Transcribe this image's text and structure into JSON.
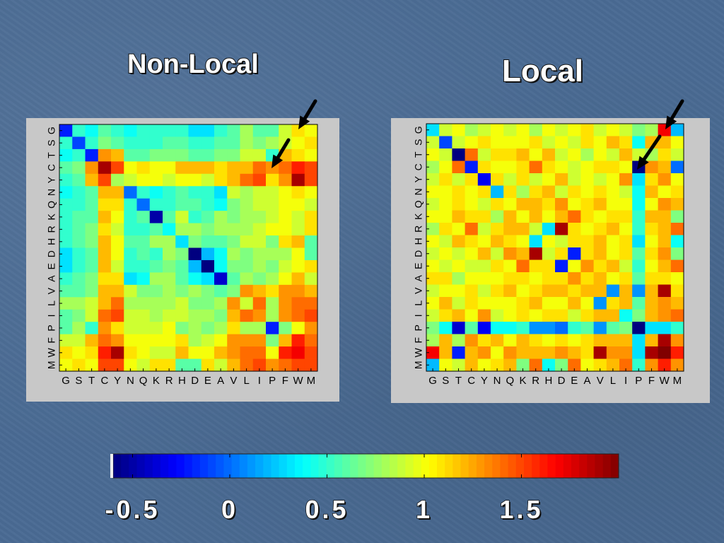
{
  "chart_data": [
    {
      "type": "heatmap",
      "title": "Non-Local",
      "x_labels": [
        "G",
        "S",
        "T",
        "C",
        "Y",
        "N",
        "Q",
        "K",
        "R",
        "H",
        "D",
        "E",
        "A",
        "V",
        "L",
        "I",
        "P",
        "F",
        "W",
        "M"
      ],
      "y_labels": [
        "G",
        "S",
        "T",
        "C",
        "Y",
        "N",
        "Q",
        "K",
        "R",
        "H",
        "D",
        "E",
        "A",
        "V",
        "L",
        "I",
        "P",
        "F",
        "W",
        "M"
      ],
      "values": [
        [
          -0.2,
          0.5,
          0.4,
          0.6,
          0.5,
          0.4,
          0.5,
          0.5,
          0.5,
          0.5,
          0.3,
          0.3,
          0.5,
          0.6,
          0.8,
          0.6,
          0.6,
          0.9,
          1.1,
          1.0
        ],
        [
          0.5,
          -0.1,
          0.5,
          0.7,
          0.6,
          0.5,
          0.5,
          0.5,
          0.6,
          0.6,
          0.5,
          0.5,
          0.6,
          0.6,
          0.8,
          0.7,
          0.8,
          0.9,
          1.0,
          1.1
        ],
        [
          0.4,
          0.5,
          -0.2,
          1.3,
          1.2,
          0.6,
          0.6,
          0.7,
          0.7,
          0.7,
          0.6,
          0.6,
          0.7,
          0.7,
          0.9,
          0.9,
          0.5,
          1.2,
          1.1,
          1.0
        ],
        [
          0.6,
          0.7,
          1.3,
          1.9,
          1.5,
          1.0,
          1.1,
          1.0,
          1.0,
          1.2,
          1.2,
          1.2,
          1.1,
          1.2,
          1.2,
          1.4,
          1.3,
          1.4,
          1.6,
          1.5
        ],
        [
          0.5,
          0.6,
          1.2,
          1.5,
          0.8,
          0.9,
          1.0,
          1.0,
          0.9,
          1.0,
          1.0,
          0.9,
          1.1,
          1.2,
          1.4,
          1.5,
          1.1,
          1.3,
          1.9,
          1.5
        ],
        [
          0.4,
          0.5,
          0.6,
          1.2,
          1.2,
          0.0,
          0.5,
          0.4,
          0.5,
          0.6,
          0.5,
          0.5,
          0.3,
          0.9,
          0.8,
          0.9,
          0.9,
          1.0,
          1.1,
          1.0
        ],
        [
          0.5,
          0.5,
          0.6,
          1.1,
          1.1,
          0.5,
          0.0,
          0.5,
          0.5,
          0.6,
          0.6,
          0.5,
          0.4,
          0.7,
          0.8,
          0.9,
          0.9,
          1.0,
          1.0,
          0.9
        ],
        [
          0.5,
          0.6,
          0.6,
          1.2,
          1.0,
          0.5,
          0.6,
          -0.5,
          0.6,
          0.9,
          0.5,
          0.6,
          0.8,
          0.7,
          0.8,
          0.8,
          0.9,
          1.0,
          0.9,
          1.1
        ],
        [
          0.5,
          0.6,
          0.7,
          1.1,
          0.9,
          0.5,
          0.5,
          0.6,
          0.4,
          0.8,
          0.8,
          0.7,
          0.8,
          0.8,
          0.8,
          0.9,
          1.0,
          1.0,
          0.9,
          1.1
        ],
        [
          0.5,
          0.6,
          0.7,
          1.2,
          1.0,
          0.6,
          0.6,
          0.8,
          0.8,
          0.3,
          0.7,
          0.6,
          0.6,
          0.7,
          0.9,
          0.9,
          0.7,
          1.1,
          1.2,
          0.6
        ],
        [
          0.3,
          0.5,
          0.6,
          1.2,
          1.0,
          0.5,
          0.6,
          0.5,
          0.8,
          0.7,
          -0.6,
          0.2,
          0.4,
          0.8,
          0.7,
          0.8,
          0.8,
          0.8,
          1.0,
          0.6
        ],
        [
          0.3,
          0.5,
          0.6,
          1.2,
          0.9,
          0.5,
          0.5,
          0.6,
          0.7,
          0.6,
          0.2,
          -0.6,
          0.4,
          0.7,
          0.7,
          0.8,
          0.7,
          0.9,
          1.0,
          1.1
        ],
        [
          0.5,
          0.6,
          0.7,
          1.1,
          1.1,
          0.3,
          0.4,
          0.8,
          0.8,
          0.6,
          0.4,
          0.3,
          -0.4,
          0.6,
          0.8,
          0.7,
          0.8,
          1.0,
          1.2,
          0.9
        ],
        [
          0.6,
          0.6,
          0.7,
          1.2,
          1.2,
          0.9,
          0.7,
          0.7,
          0.8,
          0.7,
          0.8,
          0.7,
          0.6,
          0.7,
          1.3,
          1.2,
          1.1,
          1.3,
          1.3,
          1.2
        ],
        [
          0.8,
          0.8,
          0.9,
          1.2,
          1.4,
          0.8,
          0.8,
          0.8,
          0.8,
          0.9,
          0.7,
          0.7,
          0.8,
          1.3,
          0.9,
          1.4,
          0.8,
          1.3,
          1.4,
          1.4
        ],
        [
          0.6,
          0.7,
          0.9,
          1.4,
          1.5,
          0.9,
          0.9,
          0.8,
          0.9,
          0.9,
          0.8,
          0.8,
          0.7,
          1.2,
          1.4,
          1.3,
          0.8,
          1.3,
          1.4,
          1.5
        ],
        [
          0.6,
          0.8,
          0.5,
          1.3,
          1.1,
          0.9,
          0.9,
          0.9,
          1.0,
          0.7,
          0.8,
          0.7,
          0.8,
          1.1,
          0.8,
          0.8,
          -0.2,
          0.7,
          1.0,
          1.3
        ],
        [
          0.9,
          0.9,
          1.2,
          1.4,
          1.3,
          1.0,
          1.0,
          1.0,
          1.0,
          1.1,
          0.8,
          0.9,
          1.0,
          1.3,
          1.3,
          1.3,
          0.7,
          1.2,
          1.6,
          1.4
        ],
        [
          1.1,
          1.0,
          1.1,
          1.6,
          1.9,
          1.1,
          1.0,
          0.9,
          0.9,
          1.2,
          1.0,
          1.0,
          1.2,
          1.3,
          1.4,
          1.4,
          1.0,
          1.6,
          1.7,
          1.5
        ],
        [
          1.0,
          1.1,
          1.0,
          1.5,
          1.5,
          1.0,
          0.9,
          1.1,
          1.1,
          0.6,
          0.6,
          1.1,
          0.9,
          1.2,
          1.4,
          1.5,
          1.3,
          1.4,
          1.5,
          1.5
        ]
      ]
    },
    {
      "type": "heatmap",
      "title": "Local",
      "x_labels": [
        "G",
        "S",
        "T",
        "C",
        "Y",
        "N",
        "Q",
        "K",
        "R",
        "H",
        "D",
        "E",
        "A",
        "V",
        "L",
        "I",
        "P",
        "F",
        "W",
        "M"
      ],
      "y_labels": [
        "G",
        "S",
        "T",
        "C",
        "Y",
        "N",
        "Q",
        "K",
        "R",
        "H",
        "D",
        "E",
        "A",
        "V",
        "L",
        "I",
        "P",
        "F",
        "W",
        "M"
      ],
      "values": [
        [
          0.3,
          0.9,
          1.0,
          0.8,
          0.9,
          1.0,
          0.9,
          1.0,
          0.8,
          1.0,
          0.9,
          1.0,
          1.1,
          0.9,
          1.0,
          0.9,
          0.7,
          0.8,
          1.7,
          0.2
        ],
        [
          0.9,
          -0.1,
          0.9,
          1.0,
          1.1,
          1.0,
          1.0,
          1.0,
          1.1,
          0.9,
          1.0,
          0.9,
          1.1,
          1.0,
          1.2,
          1.1,
          0.4,
          1.2,
          1.2,
          1.0
        ],
        [
          1.0,
          0.9,
          -0.6,
          1.4,
          0.9,
          1.1,
          1.1,
          1.2,
          1.0,
          1.2,
          0.9,
          1.0,
          0.8,
          1.0,
          0.9,
          1.2,
          0.9,
          0.8,
          1.1,
          0.9
        ],
        [
          0.8,
          1.0,
          1.4,
          -0.2,
          1.1,
          1.0,
          1.0,
          1.1,
          1.4,
          1.1,
          1.0,
          0.9,
          1.0,
          1.1,
          1.1,
          1.0,
          -0.6,
          1.3,
          1.2,
          0.0
        ],
        [
          0.9,
          1.1,
          0.9,
          1.1,
          -0.3,
          1.1,
          0.9,
          1.1,
          0.9,
          1.0,
          1.2,
          0.9,
          1.0,
          0.9,
          1.0,
          1.3,
          0.3,
          1.1,
          1.3,
          1.0
        ],
        [
          1.0,
          1.0,
          1.1,
          1.0,
          1.1,
          0.2,
          1.1,
          0.8,
          1.1,
          1.2,
          0.9,
          1.1,
          1.0,
          1.1,
          1.0,
          0.9,
          0.4,
          1.2,
          1.0,
          1.1
        ],
        [
          0.9,
          1.0,
          1.1,
          1.0,
          0.9,
          1.1,
          1.0,
          1.2,
          1.2,
          1.1,
          1.3,
          1.0,
          1.1,
          1.2,
          1.0,
          1.0,
          0.4,
          1.0,
          1.3,
          1.2
        ],
        [
          1.0,
          1.0,
          1.2,
          1.1,
          1.1,
          0.8,
          1.2,
          1.0,
          1.2,
          1.0,
          1.2,
          1.4,
          1.1,
          1.0,
          1.1,
          1.1,
          0.5,
          1.2,
          1.2,
          0.7
        ],
        [
          0.8,
          1.1,
          1.0,
          1.4,
          0.9,
          1.1,
          1.2,
          1.2,
          0.9,
          0.3,
          1.9,
          1.1,
          1.0,
          1.1,
          1.2,
          1.0,
          0.5,
          1.1,
          1.2,
          1.4
        ],
        [
          1.0,
          0.9,
          1.2,
          1.1,
          1.0,
          1.2,
          1.1,
          1.0,
          0.3,
          1.0,
          0.9,
          1.1,
          1.1,
          1.2,
          1.0,
          1.1,
          0.3,
          1.0,
          1.2,
          0.4
        ],
        [
          0.9,
          1.0,
          0.9,
          1.0,
          1.2,
          0.9,
          1.3,
          1.2,
          1.9,
          0.9,
          1.1,
          -0.2,
          1.1,
          1.2,
          1.0,
          1.1,
          0.6,
          1.1,
          1.3,
          0.7
        ],
        [
          1.0,
          0.9,
          1.0,
          0.9,
          0.9,
          1.1,
          1.0,
          1.4,
          1.1,
          1.1,
          -0.2,
          1.0,
          1.3,
          1.1,
          1.2,
          0.9,
          0.5,
          1.0,
          1.2,
          1.4
        ],
        [
          1.1,
          1.1,
          0.8,
          1.0,
          1.0,
          1.0,
          1.1,
          1.1,
          1.0,
          1.1,
          1.1,
          1.3,
          1.1,
          1.2,
          1.0,
          1.1,
          0.6,
          1.1,
          1.1,
          1.0
        ],
        [
          0.9,
          1.0,
          1.0,
          1.1,
          0.9,
          1.1,
          1.2,
          1.0,
          1.1,
          1.2,
          1.2,
          1.1,
          1.2,
          1.2,
          0.1,
          1.2,
          0.1,
          1.2,
          1.9,
          1.1
        ],
        [
          1.0,
          1.2,
          0.9,
          1.1,
          1.0,
          1.0,
          1.0,
          1.1,
          1.2,
          1.0,
          1.0,
          1.2,
          1.0,
          0.1,
          1.1,
          1.2,
          0.6,
          1.2,
          1.3,
          1.2
        ],
        [
          0.9,
          1.1,
          1.2,
          1.0,
          1.3,
          0.9,
          1.0,
          1.1,
          1.0,
          1.1,
          1.1,
          0.9,
          1.1,
          1.2,
          1.2,
          0.4,
          0.7,
          1.2,
          1.3,
          1.4
        ],
        [
          0.7,
          0.4,
          -0.4,
          0.6,
          -0.3,
          0.4,
          0.4,
          0.5,
          0.1,
          0.1,
          0.0,
          0.5,
          0.6,
          0.1,
          0.6,
          0.7,
          -0.6,
          0.3,
          0.3,
          0.5
        ],
        [
          0.8,
          1.2,
          0.8,
          1.3,
          1.1,
          1.2,
          1.0,
          1.2,
          1.1,
          1.0,
          1.1,
          1.0,
          1.1,
          1.2,
          1.2,
          1.2,
          0.3,
          1.2,
          1.9,
          1.3
        ],
        [
          1.7,
          1.2,
          -0.2,
          1.2,
          1.3,
          1.0,
          1.3,
          1.2,
          1.2,
          1.2,
          1.3,
          1.2,
          1.1,
          1.9,
          1.3,
          1.3,
          0.3,
          1.9,
          2.0,
          1.6
        ],
        [
          0.2,
          1.0,
          0.9,
          1.2,
          1.0,
          1.1,
          1.2,
          0.7,
          1.4,
          0.4,
          0.7,
          1.4,
          1.0,
          1.1,
          1.2,
          1.4,
          0.5,
          1.3,
          1.6,
          1.3
        ]
      ]
    }
  ],
  "colorbar": {
    "min": -0.6,
    "max": 2.0,
    "tick_labels": [
      "-0.5",
      "0",
      "0.5",
      "1",
      "1.5"
    ],
    "tick_values": [
      -0.5,
      0,
      0.5,
      1,
      1.5
    ]
  }
}
